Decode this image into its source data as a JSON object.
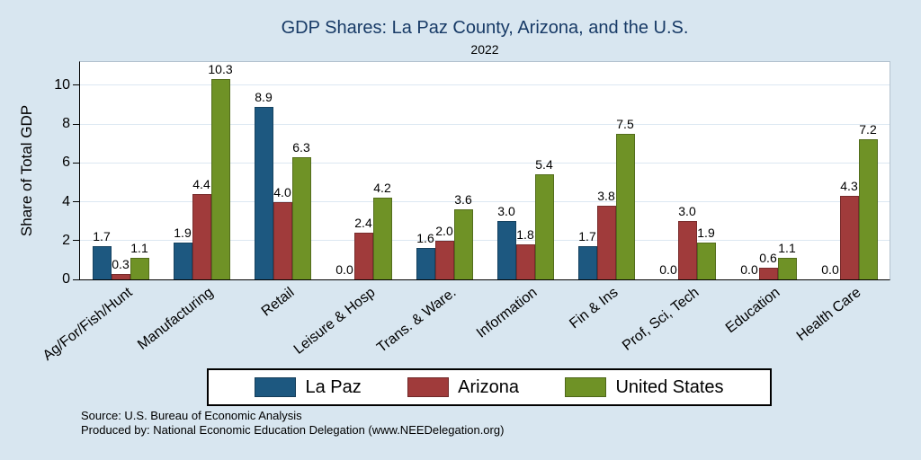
{
  "title": "GDP Shares: La Paz County, Arizona, and the U.S.",
  "subtitle": "2022",
  "ylabel": "Share of Total GDP",
  "source_line1": "Source: U.S. Bureau of Economic Analysis",
  "source_line2": "Produced by: National Economic Education Delegation (www.NEEDelegation.org)",
  "colors": {
    "background": "#d8e6f0",
    "title_text": "#173a66",
    "plot_background": "#ffffff",
    "gridline": "#dce8f2",
    "axis": "#000000"
  },
  "chart_data": {
    "type": "bar",
    "title": "GDP Shares: La Paz County, Arizona, and the U.S.",
    "subtitle": "2022",
    "xlabel": "",
    "ylabel": "Share of Total GDP",
    "ylim": [
      0,
      11.2
    ],
    "yticks": [
      0,
      2,
      4,
      6,
      8,
      10
    ],
    "grid": true,
    "legend_position": "bottom",
    "value_labels": true,
    "categories": [
      "Ag/For/Fish/Hunt",
      "Manufacturing",
      "Retail",
      "Leisure & Hosp",
      "Trans. & Ware.",
      "Information",
      "Fin & Ins",
      "Prof, Sci, Tech",
      "Education",
      "Health Care"
    ],
    "series": [
      {
        "name": "La Paz",
        "color": "#1d5880",
        "values": [
          1.7,
          1.9,
          8.9,
          0.0,
          1.6,
          3.0,
          1.7,
          0.0,
          0.0,
          0.0
        ]
      },
      {
        "name": "Arizona",
        "color": "#a03b3b",
        "values": [
          0.3,
          4.4,
          4.0,
          2.4,
          2.0,
          1.8,
          3.8,
          3.0,
          0.6,
          4.3
        ]
      },
      {
        "name": "United States",
        "color": "#6f9226",
        "values": [
          1.1,
          10.3,
          6.3,
          4.2,
          3.6,
          5.4,
          7.5,
          1.9,
          1.1,
          7.2
        ]
      }
    ]
  }
}
